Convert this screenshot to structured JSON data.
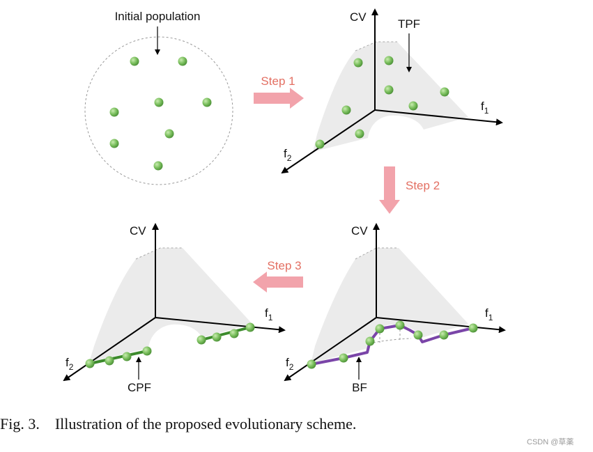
{
  "panels": {
    "initial": {
      "label": "Initial population"
    },
    "tpf": {
      "axis_cv": "CV",
      "axis_f1": "f",
      "axis_f1_sub": "1",
      "axis_f2": "f",
      "axis_f2_sub": "2",
      "label": "TPF"
    },
    "bf": {
      "axis_cv": "CV",
      "axis_f1": "f",
      "axis_f1_sub": "1",
      "axis_f2": "f",
      "axis_f2_sub": "2",
      "label": "BF"
    },
    "cpf": {
      "axis_cv": "CV",
      "axis_f1": "f",
      "axis_f1_sub": "1",
      "axis_f2": "f",
      "axis_f2_sub": "2",
      "label": "CPF"
    }
  },
  "steps": [
    "Step 1",
    "Step 2",
    "Step 3"
  ],
  "caption": "Fig. 3.    Illustration of the proposed evolutionary scheme.",
  "watermark": "CSDN @草薬",
  "colors": {
    "point": "#7bbf5e",
    "arrow": "#f2a3ab",
    "step_text": "#e36f62",
    "surface": "#ebebeb",
    "bf_line": "#7a45a8",
    "cpf_line": "#3c8a2c"
  }
}
